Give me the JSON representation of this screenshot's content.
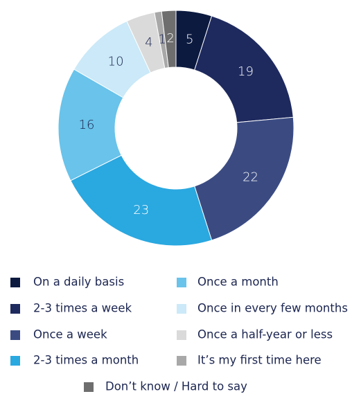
{
  "chart_data": {
    "type": "donut",
    "categories": [
      "On a daily basis",
      "2-3 times a week",
      "Once a week",
      "2-3 times a month",
      "Once a month",
      "Once in every few months",
      "Once a half-year or less",
      "It’s my first time here",
      "Don’t know / Hard to say"
    ],
    "values": [
      5,
      19,
      22,
      23,
      16,
      10,
      4,
      1,
      2
    ],
    "colors": [
      "#0c1a40",
      "#1e2a5e",
      "#3b4b82",
      "#2aa8e0",
      "#69c3ea",
      "#cbe9f8",
      "#dadada",
      "#a8a8a8",
      "#6e6e6e"
    ]
  }
}
